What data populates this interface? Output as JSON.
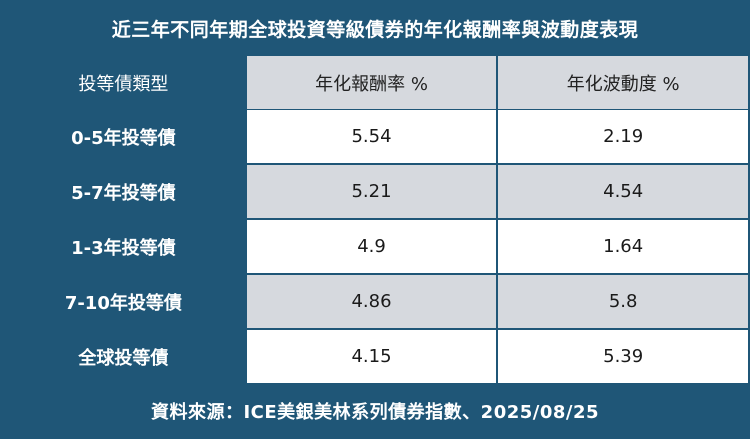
{
  "title": "近三年不同年期全球投資等級債券的年化報酬率與波動度表現",
  "headers": [
    "投等債類型",
    "年化報酬率 %",
    "年化波動度 %"
  ],
  "rows": [
    {
      "type": "0-5年投等債",
      "return": "5.54",
      "volatility": "2.19"
    },
    {
      "type": "5-7年投等債",
      "return": "5.21",
      "volatility": "4.54"
    },
    {
      "type": "1-3年投等債",
      "return": "4.9",
      "volatility": "1.64"
    },
    {
      "type": "7-10年投等債",
      "return": "4.86",
      "volatility": "5.8"
    },
    {
      "type": "全球投等債",
      "return": "4.15",
      "volatility": "5.39"
    }
  ],
  "footer": "資料來源：ICE美銀美林系列債券指數、2025/08/25",
  "colors": {
    "navy": "#1f5677",
    "gray": "#d6d9de",
    "white": "#ffffff"
  }
}
